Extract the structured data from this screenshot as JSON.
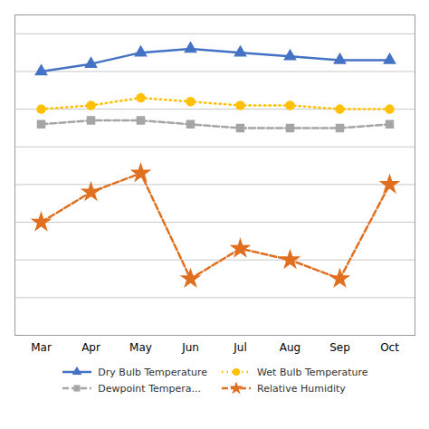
{
  "chart_data": {
    "type": "line",
    "categories": [
      "Mar",
      "Apr",
      "May",
      "Jun",
      "Jul",
      "Aug",
      "Sep",
      "Oct"
    ],
    "series": [
      {
        "name": "Dry Bulb Temperature",
        "color": "#4472C4",
        "marker": "triangle",
        "line_style": "solid",
        "values": [
          90,
          92,
          95,
          96,
          95,
          94,
          93,
          93
        ]
      },
      {
        "name": "Wet Bulb Temperature",
        "color": "#FFC000",
        "marker": "circle",
        "line_style": "dotted",
        "values": [
          80,
          81,
          83,
          82,
          81,
          81,
          80,
          80
        ]
      },
      {
        "name": "Dewpoint Tempera...",
        "color": "#A5A5A5",
        "marker": "square",
        "line_style": "dashed",
        "values": [
          76,
          77,
          77,
          76,
          75,
          75,
          75,
          76
        ]
      },
      {
        "name": "Relative Humidity",
        "color": "#E07020",
        "marker": "star",
        "line_style": "dashed",
        "values": [
          50,
          58,
          63,
          35,
          43,
          40,
          35,
          60
        ]
      }
    ],
    "ylim": [
      20,
      105
    ],
    "yticks": [
      20,
      30,
      40,
      50,
      60,
      70,
      80,
      90,
      100
    ],
    "grid": true,
    "tick_labels": "x",
    "legend": "bottom"
  }
}
